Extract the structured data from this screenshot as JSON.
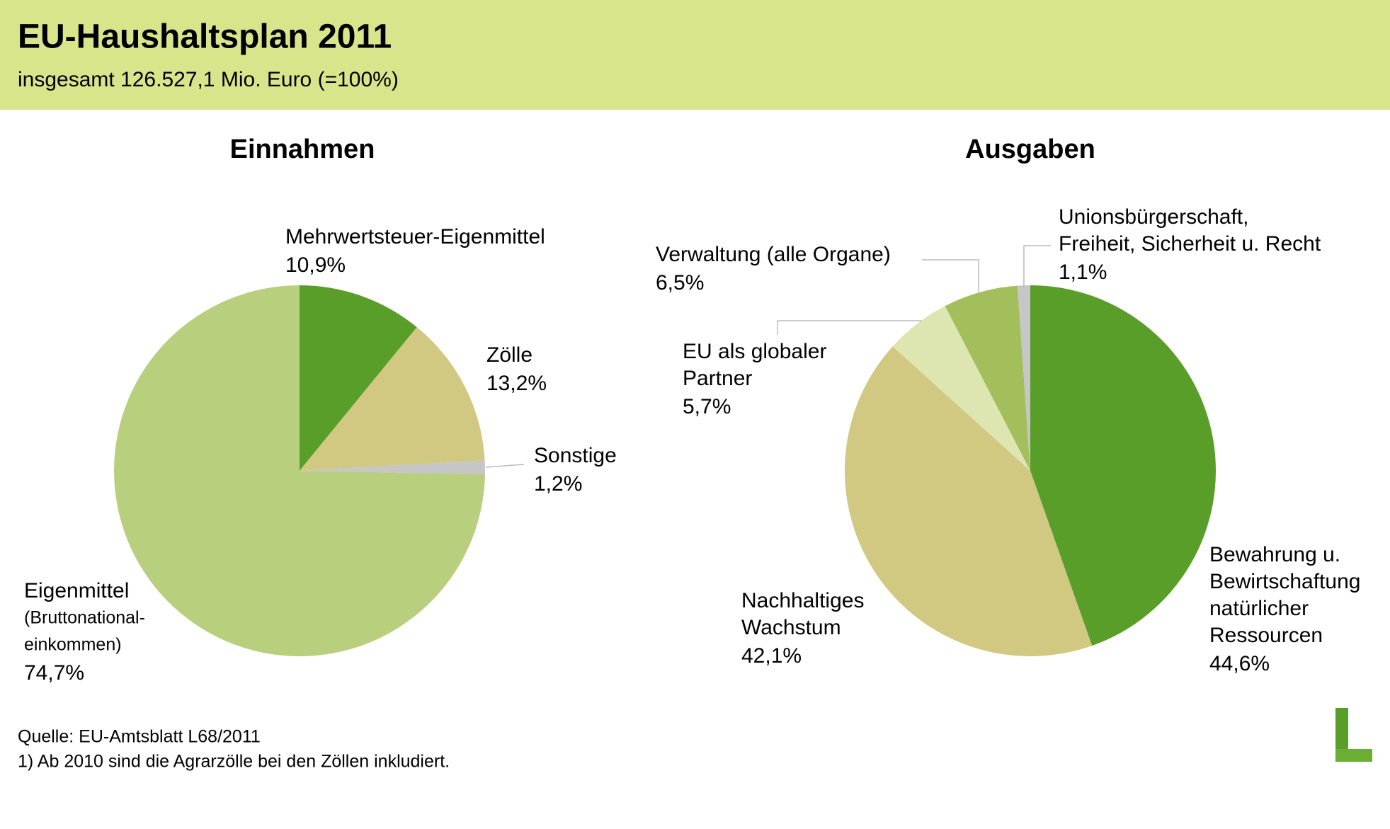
{
  "header": {
    "title": "EU-Haushaltsplan 2011",
    "subtitle": "insgesamt 126.527,1 Mio. Euro (=100%)"
  },
  "chart_data": [
    {
      "type": "pie",
      "title": "Einnahmen",
      "categories": [
        [
          "Mehrwertsteuer-Eigenmittel"
        ],
        [
          "Zölle"
        ],
        [
          "Sonstige"
        ],
        [
          "Eigenmittel",
          "(Bruttonational-",
          "einkommen)"
        ]
      ],
      "values": [
        10.9,
        13.2,
        1.2,
        74.7
      ],
      "value_labels": [
        "10,9%",
        "13,2%",
        "1,2%",
        "74,7%"
      ],
      "colors": [
        "#5a9e2a",
        "#d1c882",
        "#c6c6c6",
        "#b8cf7e"
      ]
    },
    {
      "type": "pie",
      "title": "Ausgaben",
      "categories": [
        [
          "Bewahrung u.",
          "Bewirtschaftung",
          "natürlicher",
          "Ressourcen"
        ],
        [
          "Nachhaltiges",
          "Wachstum"
        ],
        [
          "EU als globaler",
          "Partner"
        ],
        [
          "Verwaltung (alle Organe)"
        ],
        [
          "Unionsbürgerschaft,",
          "Freiheit, Sicherheit u. Recht"
        ]
      ],
      "values": [
        44.6,
        42.1,
        5.7,
        6.5,
        1.1
      ],
      "value_labels": [
        "44,6%",
        "42,1%",
        "5,7%",
        "6,5%",
        "1,1%"
      ],
      "colors": [
        "#5a9e2a",
        "#d1c882",
        "#dde6b0",
        "#a3bf5c",
        "#c6c6c6"
      ]
    }
  ],
  "footer": {
    "source": "Quelle: EU-Amtsblatt L68/2011",
    "note": "1) Ab 2010 sind die Agrarzölle bei den Zöllen inkludiert."
  }
}
